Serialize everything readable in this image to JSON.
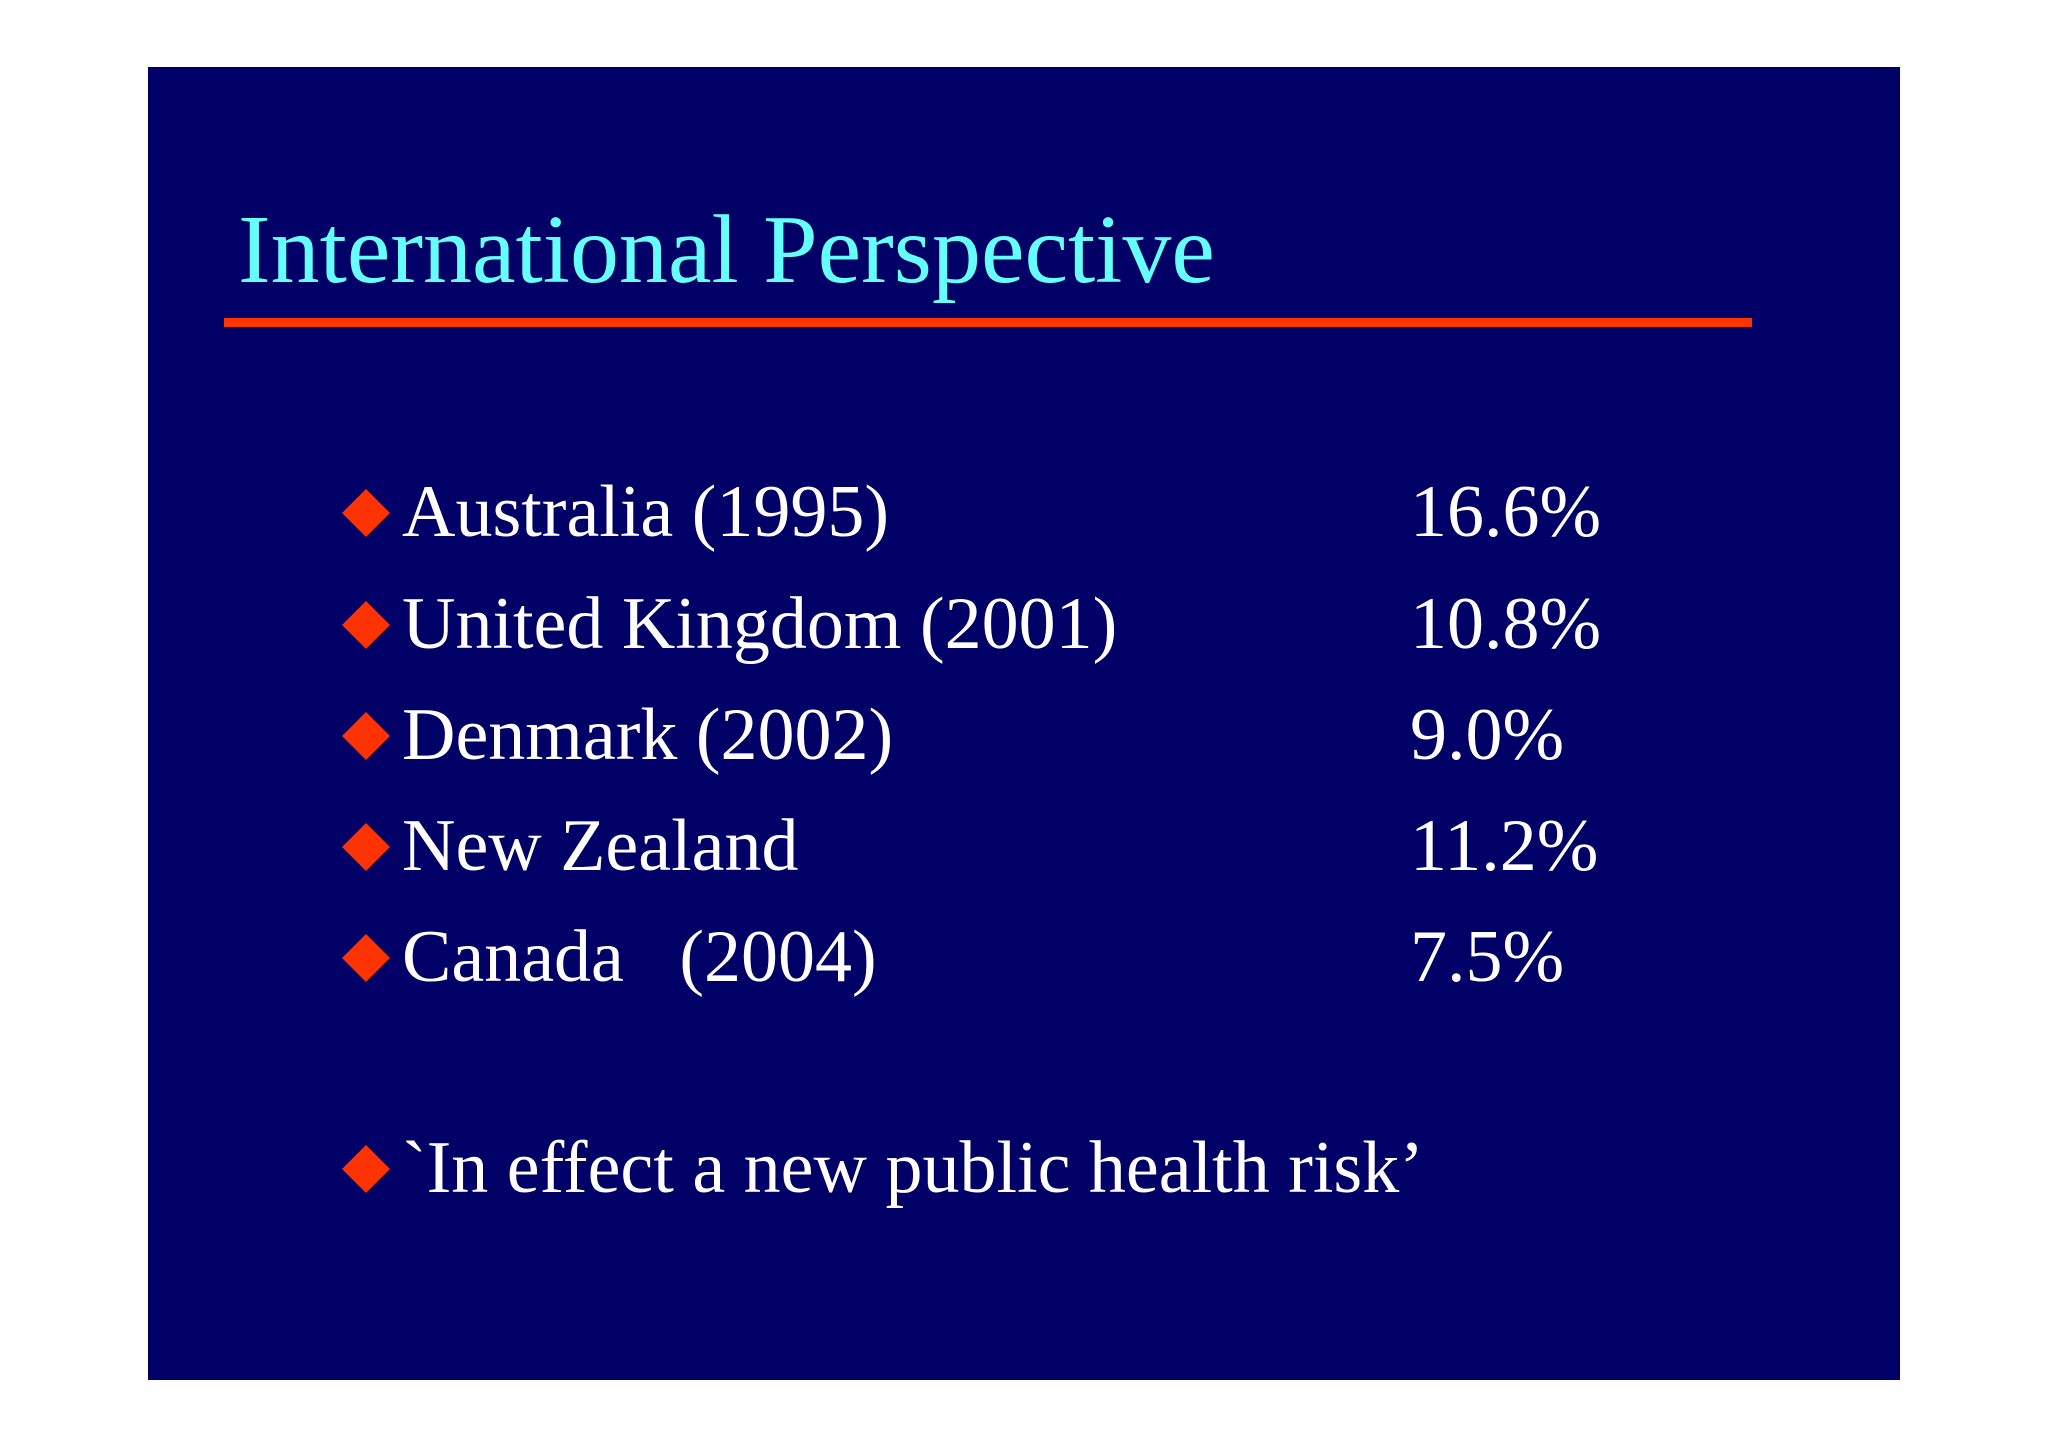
{
  "slide": {
    "title": "International Perspective",
    "colors": {
      "background": "#000066",
      "title": "#66ffff",
      "accent": "#ff3300",
      "text": "#ffffff"
    },
    "bullet_icon": "red-diamond-icon",
    "rows": [
      {
        "label": "Australia (1995)",
        "value": "16.6%"
      },
      {
        "label": "United Kingdom (2001)",
        "value": "10.8%"
      },
      {
        "label": "Denmark (2002)",
        "value": "9.0%"
      },
      {
        "label": "New Zealand",
        "value": "11.2%"
      },
      {
        "label": "Canada   (2004)",
        "value": "7.5%"
      }
    ],
    "quote": "`In effect a new public health risk’"
  }
}
